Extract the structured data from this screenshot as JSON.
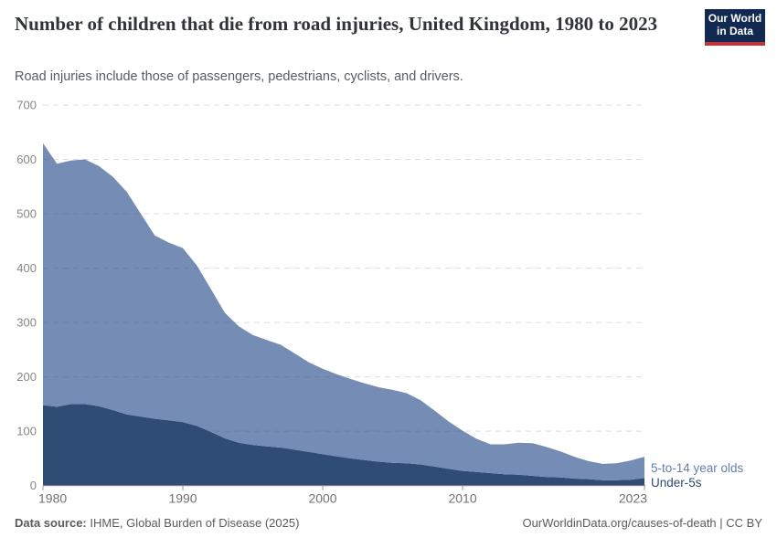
{
  "header": {
    "title": "Number of children that die from road injuries, United Kingdom, 1980 to 2023",
    "subtitle": "Road injuries include those of passengers, pedestrians, cyclists, and drivers.",
    "logo": {
      "line1": "Our World",
      "line2": "in Data"
    }
  },
  "chart_data": {
    "type": "area",
    "stacked": true,
    "title": "Number of children that die from road injuries, United Kingdom, 1980 to 2023",
    "xlabel": "",
    "ylabel": "",
    "ylim": [
      0,
      700
    ],
    "yticks": [
      0,
      100,
      200,
      300,
      400,
      500,
      600,
      700
    ],
    "xticks": [
      1980,
      1990,
      2000,
      2010,
      2023
    ],
    "grid": "horizontal-dashed",
    "legend_position": "right-inline-labels",
    "x": [
      1980,
      1981,
      1982,
      1983,
      1984,
      1985,
      1986,
      1987,
      1988,
      1989,
      1990,
      1991,
      1992,
      1993,
      1994,
      1995,
      1996,
      1997,
      1998,
      1999,
      2000,
      2001,
      2002,
      2003,
      2004,
      2005,
      2006,
      2007,
      2008,
      2009,
      2010,
      2011,
      2012,
      2013,
      2014,
      2015,
      2016,
      2017,
      2018,
      2019,
      2020,
      2021,
      2022,
      2023
    ],
    "series": [
      {
        "name": "Under-5s",
        "color": "#2f4d74",
        "label_color": "#2d4b72",
        "values": [
          148,
          145,
          150,
          150,
          146,
          139,
          131,
          127,
          123,
          120,
          117,
          110,
          99,
          87,
          79,
          75,
          72,
          70,
          66,
          62,
          58,
          54,
          50,
          47,
          44,
          42,
          41,
          39,
          35,
          31,
          27,
          25,
          23,
          21,
          20,
          18,
          16,
          15,
          13,
          12,
          10,
          10,
          11,
          14
        ]
      },
      {
        "name": "5-to-14 year olds",
        "color": "#758cb5",
        "label_color": "#627fae",
        "values": [
          482,
          447,
          448,
          450,
          442,
          429,
          409,
          373,
          337,
          327,
          320,
          295,
          263,
          231,
          214,
          202,
          196,
          189,
          177,
          165,
          157,
          151,
          146,
          141,
          137,
          134,
          129,
          118,
          103,
          87,
          74,
          61,
          53,
          55,
          59,
          60,
          55,
          48,
          40,
          33,
          30,
          31,
          35,
          39
        ]
      }
    ]
  },
  "footer": {
    "data_source_label": "Data source:",
    "data_source_text": " IHME, Global Burden of Disease (2025)",
    "link_text": "OurWorldinData.org/causes-of-death | CC BY"
  }
}
